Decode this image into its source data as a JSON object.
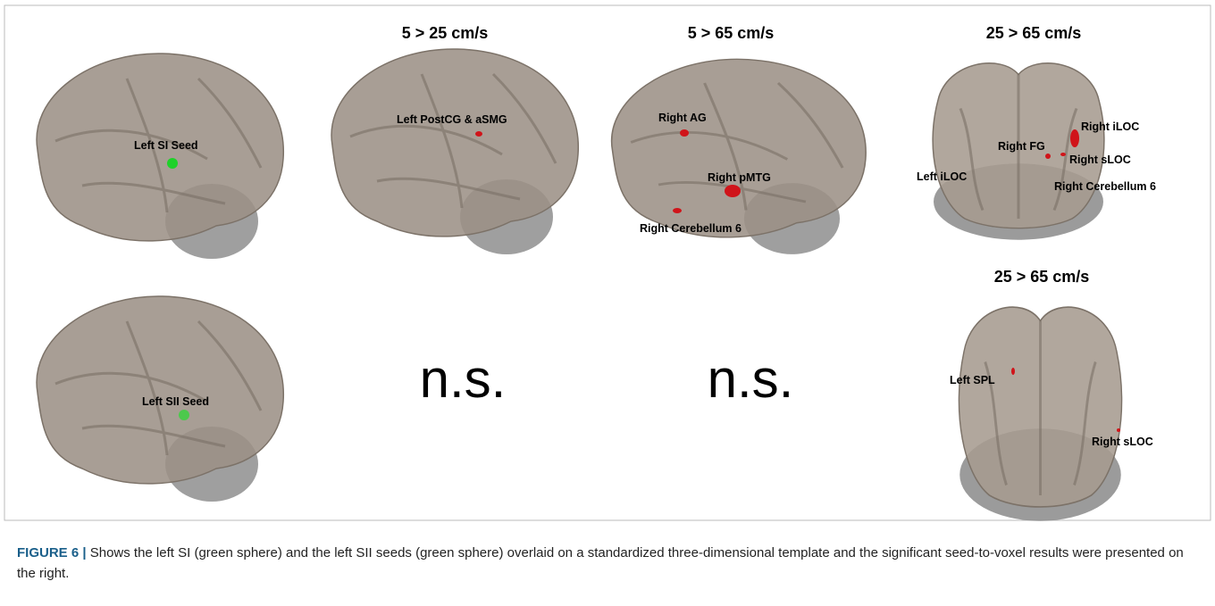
{
  "figure": {
    "panels": [
      {
        "labels": [
          "Left SI Seed"
        ]
      },
      {
        "title": "5 > 25 cm/s",
        "labels": [
          "Left PostCG & aSMG"
        ]
      },
      {
        "title": "5 > 65 cm/s",
        "labels": [
          "Right AG",
          "Right pMTG",
          "Right Cerebellum 6"
        ]
      },
      {
        "title": "25 > 65 cm/s",
        "labels": [
          "Right iLOC",
          "Right FG",
          "Right sLOC",
          "Left iLOC",
          "Right Cerebellum 6"
        ]
      },
      {
        "labels": [
          "Left SII Seed"
        ]
      },
      {
        "text": "n.s."
      },
      {
        "text": "n.s."
      },
      {
        "title": "25 > 65 cm/s",
        "labels": [
          "Left SPL",
          "Right sLOC"
        ]
      }
    ],
    "caption": {
      "label": "FIGURE 6 |",
      "text": "Shows the left SI (green sphere) and the left SII seeds (green sphere) overlaid on a standardized three-dimensional template and the significant seed-to-voxel results were presented on the right."
    }
  }
}
